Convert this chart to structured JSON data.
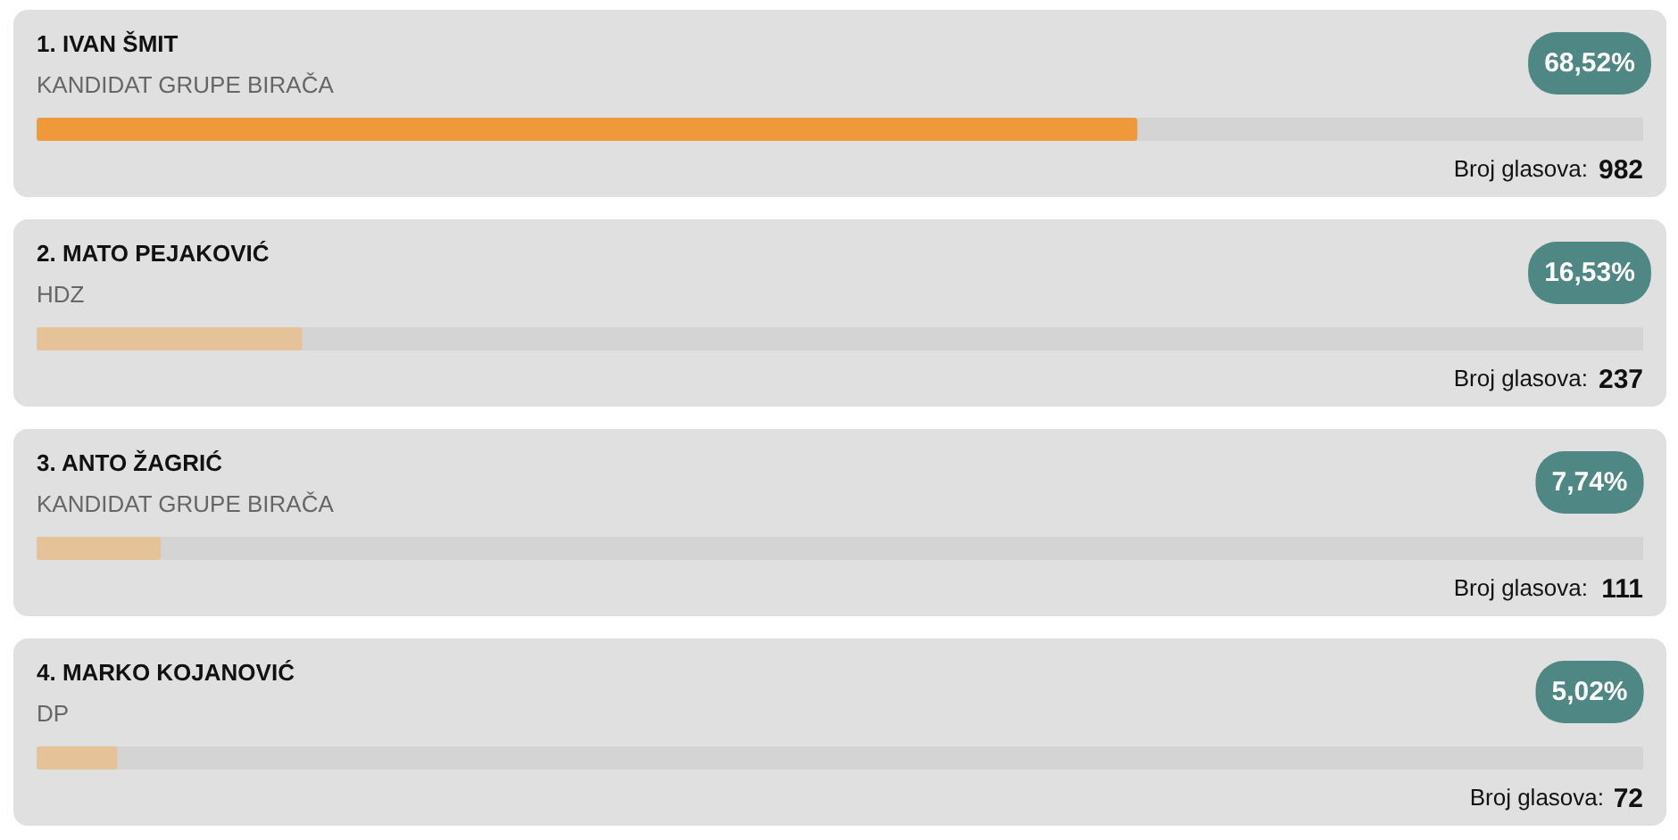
{
  "chart_data": {
    "type": "bar",
    "orientation": "horizontal",
    "categories": [
      "1. IVAN ŠMIT",
      "2. MATO PEJAKOVIĆ",
      "3. ANTO ŽAGRIĆ",
      "4. MARKO KOJANOVIĆ"
    ],
    "values": [
      68.52,
      16.53,
      7.74,
      5.02
    ],
    "colors": [
      "#f0993a",
      "#e5c298",
      "#e5c298",
      "#e5c298"
    ],
    "value_labels": [
      "68,52%",
      "16,53%",
      "7,74%",
      "5,02%"
    ],
    "xlim": [
      0,
      100
    ],
    "tick_labels": false,
    "grid": false,
    "annotations": [
      "KANDIDAT GRUPE BIRAČA",
      "Broj glasova: 982",
      "HDZ",
      "Broj glasova: 237",
      "KANDIDAT GRUPE BIRAČA",
      "Broj glasova: 111",
      "DP",
      "Broj glasova: 72"
    ]
  }
}
